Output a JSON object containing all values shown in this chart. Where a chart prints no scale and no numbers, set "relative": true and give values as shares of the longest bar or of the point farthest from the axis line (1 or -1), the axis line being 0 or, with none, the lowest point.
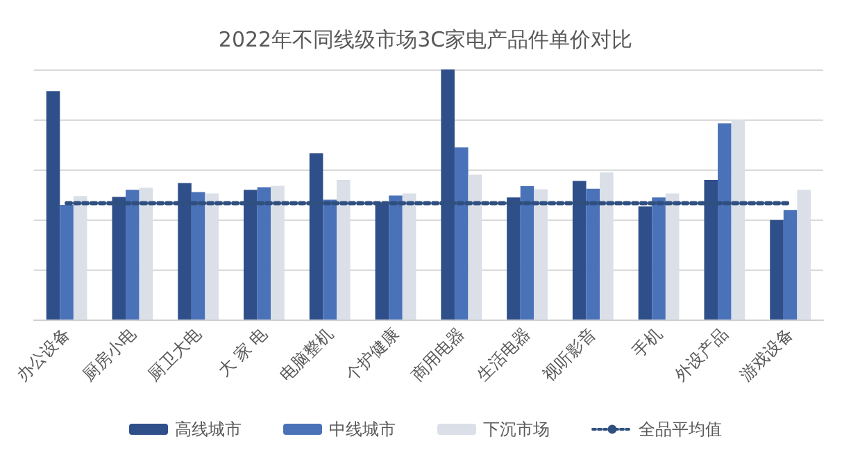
{
  "chart_data": {
    "type": "bar",
    "title": "2022年不同线级市场3C家电产品件单价对比",
    "categories": [
      "办公设备",
      "厨房小电",
      "厨卫大电",
      "大 家 电",
      "电脑整机",
      "个护健康",
      "商用电器",
      "生活电器",
      "视听影音",
      "手机",
      "外设产品",
      "游戏设备"
    ],
    "relative": true,
    "grid": "y",
    "legend": "bottom",
    "series": [
      {
        "name": "高线城市",
        "color": "#2f4f8a",
        "values": [
          0.913,
          0.49,
          0.546,
          0.519,
          0.665,
          0.465,
          1,
          0.488,
          0.554,
          0.452,
          0.558,
          0.398
        ]
      },
      {
        "name": "中线城市",
        "color": "#4a72b8",
        "values": [
          0.458,
          0.519,
          0.51,
          0.529,
          0.479,
          0.496,
          0.688,
          0.533,
          0.523,
          0.488,
          0.785,
          0.438
        ]
      },
      {
        "name": "下沉市场",
        "color": "#dadfe8",
        "values": [
          0.494,
          0.527,
          0.504,
          0.535,
          0.558,
          0.504,
          0.579,
          0.521,
          0.588,
          0.504,
          0.8,
          0.519
        ]
      },
      {
        "name": "全品平均值",
        "type": "line",
        "color": "#2f4f7f",
        "line_style": "dotted",
        "marker": "none",
        "values": [
          0.465,
          0.465,
          0.465,
          0.465,
          0.465,
          0.465,
          0.465,
          0.465,
          0.465,
          0.465,
          0.465,
          0.465
        ]
      }
    ]
  }
}
